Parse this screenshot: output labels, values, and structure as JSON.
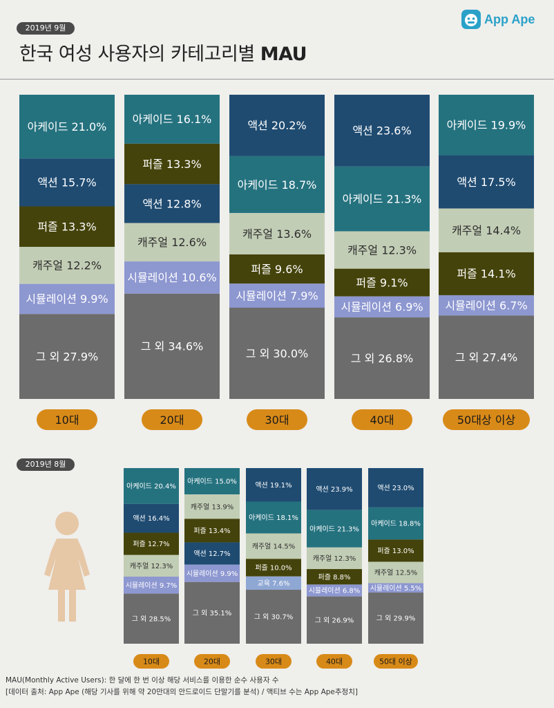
{
  "header": {
    "date_badge": "2019년 9월",
    "title_text": "한국 여성 사용자의 카테고리별 ",
    "title_bold": "MAU",
    "logo_text": "App Ape"
  },
  "colors": {
    "아케이드": "#25727f",
    "액션": "#1f4b71",
    "퍼즐": "#44430b",
    "캐주얼": "#c2cdb5",
    "시뮬레이션": "#8d97d0",
    "교육": "#8fa7d3",
    "그 외": "#6c6c6c",
    "pill": "#d88a18"
  },
  "section2": {
    "date_badge": "2019년 8월"
  },
  "chart_data": [
    {
      "type": "bar",
      "stacked": true,
      "percent": true,
      "categories": [
        "10대",
        "20대",
        "30대",
        "40대",
        "50대상 이상"
      ],
      "stacks": [
        [
          {
            "label": "아케이드",
            "value": 21.0,
            "text": "아케이드 21.0%"
          },
          {
            "label": "액션",
            "value": 15.7,
            "text": "액션 15.7%"
          },
          {
            "label": "퍼즐",
            "value": 13.3,
            "text": "퍼즐 13.3%"
          },
          {
            "label": "캐주얼",
            "value": 12.2,
            "text": "캐주얼 12.2%"
          },
          {
            "label": "시뮬레이션",
            "value": 9.9,
            "text": "시뮬레이션 9.9%"
          },
          {
            "label": "그 외",
            "value": 27.9,
            "text": "그 외 27.9%"
          }
        ],
        [
          {
            "label": "아케이드",
            "value": 16.1,
            "text": "아케이드 16.1%"
          },
          {
            "label": "퍼즐",
            "value": 13.3,
            "text": "퍼즐 13.3%"
          },
          {
            "label": "액션",
            "value": 12.8,
            "text": "액션 12.8%"
          },
          {
            "label": "캐주얼",
            "value": 12.6,
            "text": "캐주얼 12.6%"
          },
          {
            "label": "시뮬레이션",
            "value": 10.6,
            "text": "시뮬레이션 10.6%"
          },
          {
            "label": "그 외",
            "value": 34.6,
            "text": "그 외 34.6%"
          }
        ],
        [
          {
            "label": "액션",
            "value": 20.2,
            "text": "액션 20.2%"
          },
          {
            "label": "아케이드",
            "value": 18.7,
            "text": "아케이드 18.7%"
          },
          {
            "label": "캐주얼",
            "value": 13.6,
            "text": "캐주얼 13.6%"
          },
          {
            "label": "퍼즐",
            "value": 9.6,
            "text": "퍼즐 9.6%"
          },
          {
            "label": "시뮬레이션",
            "value": 7.9,
            "text": "시뮬레이션 7.9%"
          },
          {
            "label": "그 외",
            "value": 30.0,
            "text": "그 외 30.0%"
          }
        ],
        [
          {
            "label": "액션",
            "value": 23.6,
            "text": "액션 23.6%"
          },
          {
            "label": "아케이드",
            "value": 21.3,
            "text": "아케이드 21.3%"
          },
          {
            "label": "캐주얼",
            "value": 12.3,
            "text": "캐주얼 12.3%"
          },
          {
            "label": "퍼즐",
            "value": 9.1,
            "text": "퍼즐 9.1%"
          },
          {
            "label": "시뮬레이션",
            "value": 6.9,
            "text": "시뮬레이션 6.9%"
          },
          {
            "label": "그 외",
            "value": 26.8,
            "text": "그 외 26.8%"
          }
        ],
        [
          {
            "label": "아케이드",
            "value": 19.9,
            "text": "아케이드 19.9%"
          },
          {
            "label": "액션",
            "value": 17.5,
            "text": "액션 17.5%"
          },
          {
            "label": "캐주얼",
            "value": 14.4,
            "text": "캐주얼 14.4%"
          },
          {
            "label": "퍼즐",
            "value": 14.1,
            "text": "퍼즐 14.1%"
          },
          {
            "label": "시뮬레이션",
            "value": 6.7,
            "text": "시뮬레이션 6.7%"
          },
          {
            "label": "그 외",
            "value": 27.4,
            "text": "그 외 27.4%"
          }
        ]
      ]
    },
    {
      "type": "bar",
      "stacked": true,
      "percent": true,
      "categories": [
        "10대",
        "20대",
        "30대",
        "40대",
        "50대 이상"
      ],
      "stacks": [
        [
          {
            "label": "아케이드",
            "value": 20.4,
            "text": "아케이드 20.4%"
          },
          {
            "label": "액션",
            "value": 16.4,
            "text": "액션 16.4%"
          },
          {
            "label": "퍼즐",
            "value": 12.7,
            "text": "퍼즐 12.7%"
          },
          {
            "label": "캐주얼",
            "value": 12.3,
            "text": "캐주얼 12.3%"
          },
          {
            "label": "시뮬레이션",
            "value": 9.7,
            "text": "시뮬레이션 9.7%"
          },
          {
            "label": "그 외",
            "value": 28.5,
            "text": "그 외 28.5%"
          }
        ],
        [
          {
            "label": "아케이드",
            "value": 15.0,
            "text": "아케이드 15.0%"
          },
          {
            "label": "캐주얼",
            "value": 13.9,
            "text": "캐주얼 13.9%"
          },
          {
            "label": "퍼즐",
            "value": 13.4,
            "text": "퍼즐 13.4%"
          },
          {
            "label": "액션",
            "value": 12.7,
            "text": "액션 12.7%"
          },
          {
            "label": "시뮬레이션",
            "value": 9.9,
            "text": "시뮬레이션 9.9%"
          },
          {
            "label": "그 외",
            "value": 35.1,
            "text": "그 외 35.1%"
          }
        ],
        [
          {
            "label": "액션",
            "value": 19.1,
            "text": "액션 19.1%"
          },
          {
            "label": "아케이드",
            "value": 18.1,
            "text": "아케이드 18.1%"
          },
          {
            "label": "캐주얼",
            "value": 14.5,
            "text": "캐주얼 14.5%"
          },
          {
            "label": "퍼즐",
            "value": 10.0,
            "text": "퍼즐 10.0%"
          },
          {
            "label": "교육",
            "value": 7.6,
            "text": "교육 7.6%"
          },
          {
            "label": "그 외",
            "value": 30.7,
            "text": "그 외 30.7%"
          }
        ],
        [
          {
            "label": "액션",
            "value": 23.9,
            "text": "액션 23.9%"
          },
          {
            "label": "아케이드",
            "value": 21.3,
            "text": "아케이드 21.3%"
          },
          {
            "label": "캐주얼",
            "value": 12.3,
            "text": "캐주얼 12.3%"
          },
          {
            "label": "퍼즐",
            "value": 8.8,
            "text": "퍼즐 8.8%"
          },
          {
            "label": "시뮬레이션",
            "value": 6.8,
            "text": "시뮬레이션 6.8%"
          },
          {
            "label": "그 외",
            "value": 26.9,
            "text": "그 외 26.9%"
          }
        ],
        [
          {
            "label": "액션",
            "value": 23.0,
            "text": "액션 23.0%"
          },
          {
            "label": "아케이드",
            "value": 18.8,
            "text": "아케이드 18.8%"
          },
          {
            "label": "퍼즐",
            "value": 13.0,
            "text": "퍼즐 13.0%"
          },
          {
            "label": "캐주얼",
            "value": 12.5,
            "text": "캐주얼 12.5%"
          },
          {
            "label": "시뮬레이션",
            "value": 5.5,
            "text": "시뮬레이션 5.5%"
          },
          {
            "label": "그 외",
            "value": 29.9,
            "text": "그 외 29.9%"
          }
        ]
      ]
    }
  ],
  "footer": {
    "line1": "MAU(Monthly Active Users):  한 달에 한 번 이상 해당 서비스를 이용한 순수 사용자 수",
    "line2": "[데이터 출처: App Ape (해당 기사를 위해 약 20만대의 안드로이드 단말기를 분석) / 액티브 수는 App Ape추정치]"
  }
}
